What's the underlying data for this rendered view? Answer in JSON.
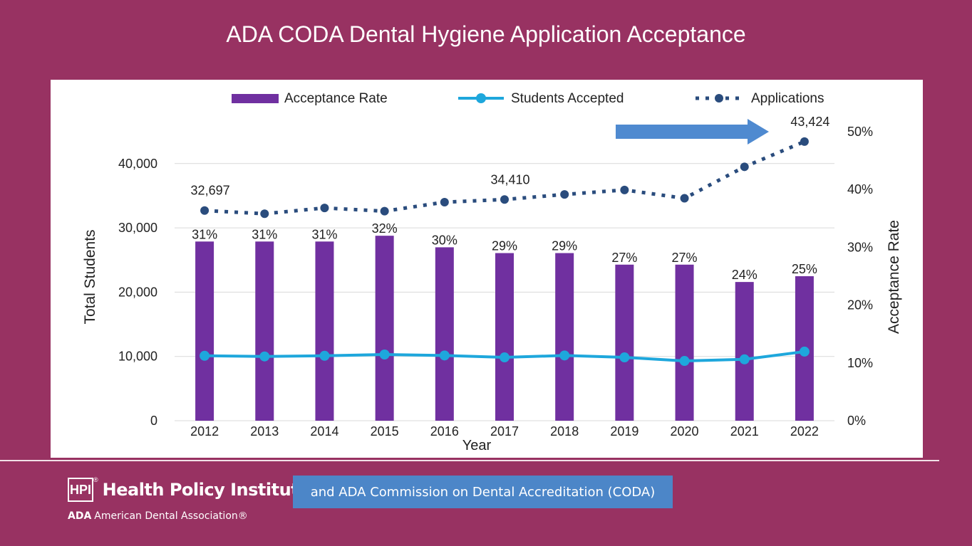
{
  "slide": {
    "title": "ADA CODA Dental Hygiene Application Acceptance"
  },
  "footer": {
    "hpi_logo": "HPI",
    "hpi_mark": "®",
    "hpi_name": "Health Policy Institute",
    "ada_abbr": "ADA",
    "ada_name": "American Dental Association®",
    "coda_note": "and ADA Commission on Dental Accreditation (CODA)"
  },
  "colors": {
    "background": "#983262",
    "bar": "#7030a0",
    "students": "#1ea7dc",
    "applications": "#2a4c7d",
    "arrow": "#4f8ad0"
  },
  "chart_data": {
    "type": "bar",
    "categories": [
      "2012",
      "2013",
      "2014",
      "2015",
      "2016",
      "2017",
      "2018",
      "2019",
      "2020",
      "2021",
      "2022"
    ],
    "xlabel": "Year",
    "ylabel": "Total Students",
    "y2label": "Acceptance Rate",
    "ylim": [
      0,
      45000
    ],
    "y_ticks": [
      0,
      10000,
      20000,
      30000,
      40000
    ],
    "y_tick_labels": [
      "0",
      "10,000",
      "20,000",
      "30,000",
      "40,000"
    ],
    "y2lim": [
      0,
      0.55
    ],
    "y2_ticks": [
      0,
      0.1,
      0.2,
      0.3,
      0.4,
      0.5
    ],
    "y2_tick_labels": [
      "0%",
      "10%",
      "20%",
      "30%",
      "40%",
      "50%"
    ],
    "series": [
      {
        "name": "Acceptance Rate",
        "kind": "bar",
        "axis": "right",
        "values": [
          0.31,
          0.31,
          0.31,
          0.32,
          0.3,
          0.29,
          0.29,
          0.27,
          0.27,
          0.24,
          0.25
        ],
        "labels": [
          "31%",
          "31%",
          "31%",
          "32%",
          "30%",
          "29%",
          "29%",
          "27%",
          "27%",
          "24%",
          "25%"
        ]
      },
      {
        "name": "Students Accepted",
        "kind": "line",
        "axis": "left",
        "values": [
          10100,
          10000,
          10100,
          10300,
          10150,
          9850,
          10150,
          9850,
          9300,
          9550,
          10750
        ]
      },
      {
        "name": "Applications",
        "kind": "dotted-line",
        "axis": "left",
        "values": [
          32697,
          32200,
          33100,
          32600,
          34000,
          34410,
          35200,
          35900,
          34600,
          39500,
          43424
        ],
        "point_labels": [
          "32,697",
          "",
          "",
          "",
          "",
          "34,410",
          "",
          "",
          "",
          "",
          "43,424"
        ]
      }
    ],
    "legend": "top",
    "annotations": [
      "arrow pointing to 43,424"
    ]
  }
}
